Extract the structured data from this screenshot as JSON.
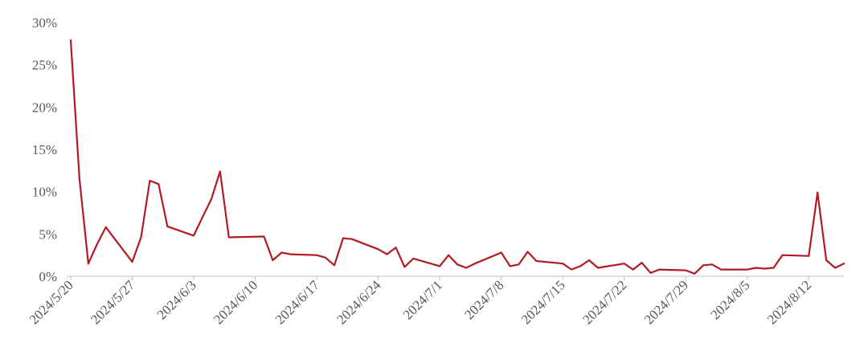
{
  "chart_data": {
    "type": "line",
    "title": "",
    "xlabel": "",
    "ylabel": "",
    "ylim": [
      0,
      30
    ],
    "y_ticks": [
      "0%",
      "5%",
      "10%",
      "15%",
      "20%",
      "25%",
      "30%"
    ],
    "y_tick_values": [
      0,
      5,
      10,
      15,
      20,
      25,
      30
    ],
    "x_tick_labels": [
      "2024/5/20",
      "2024/5/27",
      "2024/6/3",
      "2024/6/10",
      "2024/6/17",
      "2024/6/24",
      "2024/7/1",
      "2024/7/8",
      "2024/7/15",
      "2024/7/22",
      "2024/7/29",
      "2024/8/5",
      "2024/8/12"
    ],
    "x_range": [
      "2024-05-20",
      "2024-08-16"
    ],
    "grid": false,
    "legend": "none",
    "color": "#b01c22",
    "series": [
      {
        "x": [
          "2024-05-20",
          "2024-05-21",
          "2024-05-22",
          "2024-05-23",
          "2024-05-24",
          "2024-05-27",
          "2024-05-28",
          "2024-05-29",
          "2024-05-30",
          "2024-05-31",
          "2024-06-03",
          "2024-06-04",
          "2024-06-05",
          "2024-06-06",
          "2024-06-07",
          "2024-06-11",
          "2024-06-12",
          "2024-06-13",
          "2024-06-14",
          "2024-06-17",
          "2024-06-18",
          "2024-06-19",
          "2024-06-20",
          "2024-06-21",
          "2024-06-24",
          "2024-06-25",
          "2024-06-26",
          "2024-06-27",
          "2024-06-28",
          "2024-07-01",
          "2024-07-02",
          "2024-07-03",
          "2024-07-04",
          "2024-07-05",
          "2024-07-08",
          "2024-07-09",
          "2024-07-10",
          "2024-07-11",
          "2024-07-12",
          "2024-07-15",
          "2024-07-16",
          "2024-07-17",
          "2024-07-18",
          "2024-07-19",
          "2024-07-22",
          "2024-07-23",
          "2024-07-24",
          "2024-07-25",
          "2024-07-26",
          "2024-07-29",
          "2024-07-30",
          "2024-07-31",
          "2024-08-01",
          "2024-08-02",
          "2024-08-05",
          "2024-08-06",
          "2024-08-07",
          "2024-08-08",
          "2024-08-09",
          "2024-08-12",
          "2024-08-13",
          "2024-08-14",
          "2024-08-15",
          "2024-08-16"
        ],
        "values": [
          27.9,
          11.5,
          1.5,
          3.8,
          5.8,
          1.7,
          4.6,
          11.3,
          10.9,
          5.9,
          4.8,
          7.0,
          9.1,
          12.4,
          4.6,
          4.7,
          1.9,
          2.8,
          2.6,
          2.5,
          2.2,
          1.3,
          4.5,
          4.4,
          3.2,
          2.6,
          3.4,
          1.1,
          2.1,
          1.2,
          2.5,
          1.4,
          1.0,
          1.5,
          2.8,
          1.2,
          1.4,
          2.9,
          1.8,
          1.5,
          0.8,
          1.2,
          1.9,
          1.0,
          1.5,
          0.8,
          1.6,
          0.4,
          0.8,
          0.7,
          0.3,
          1.3,
          1.4,
          0.8,
          0.8,
          1.0,
          0.9,
          1.0,
          2.5,
          2.4,
          9.9,
          1.9,
          1.0,
          1.5
        ]
      }
    ]
  }
}
